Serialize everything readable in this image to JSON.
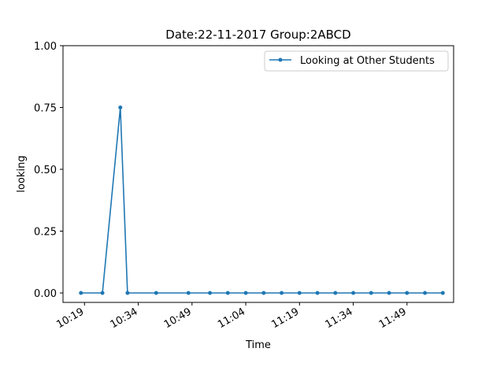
{
  "chart_data": {
    "type": "line",
    "title": "Date:22-11-2017  Group:2ABCD",
    "xlabel": "Time",
    "ylabel": "looking",
    "ylim": [
      0,
      1
    ],
    "yticks": [
      "0.00",
      "0.25",
      "0.50",
      "0.75",
      "1.00"
    ],
    "xlim": [
      "10:13",
      "12:02"
    ],
    "xticks": [
      "10:19",
      "10:34",
      "10:49",
      "11:04",
      "11:19",
      "11:34",
      "11:49"
    ],
    "grid": false,
    "legend_position": "top-right",
    "color": "#1f77b4",
    "series": [
      {
        "name": "Looking at Other Students",
        "x": [
          "10:18",
          "10:24",
          "10:29",
          "10:31",
          "10:39",
          "10:48",
          "10:54",
          "10:59",
          "11:04",
          "11:09",
          "11:14",
          "11:19",
          "11:24",
          "11:29",
          "11:34",
          "11:39",
          "11:44",
          "11:49",
          "11:54",
          "11:59"
        ],
        "y": [
          0,
          0,
          0.75,
          0,
          0,
          0,
          0,
          0,
          0,
          0,
          0,
          0,
          0,
          0,
          0,
          0,
          0,
          0,
          0,
          0
        ]
      }
    ]
  }
}
